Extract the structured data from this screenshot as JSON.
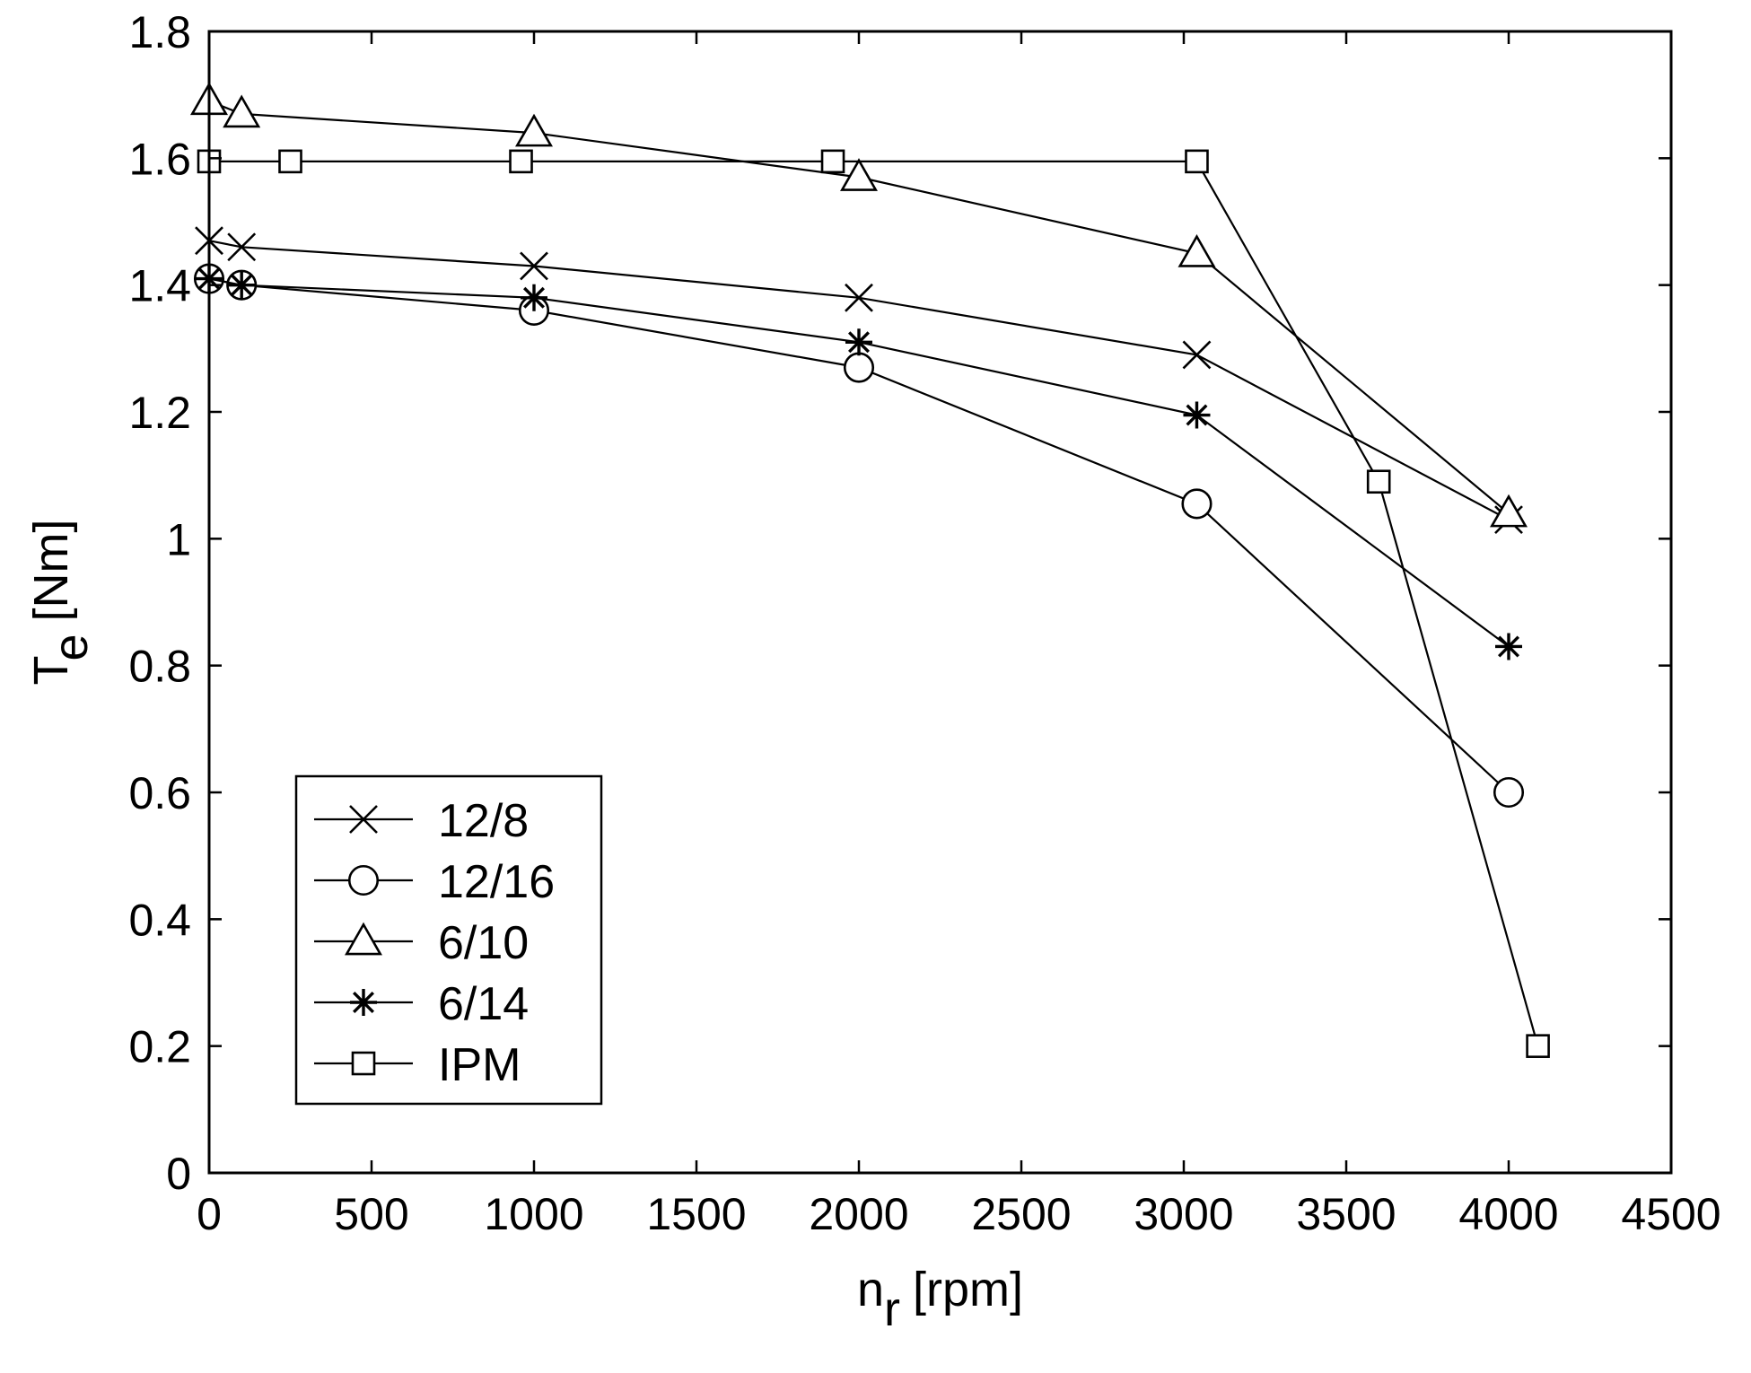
{
  "chart_data": {
    "type": "line",
    "xlabel": {
      "main": "n",
      "sub": "r",
      "unit": "[rpm]"
    },
    "ylabel": {
      "main": "T",
      "sub": "e",
      "unit": "[Nm]"
    },
    "xlim": [
      0,
      4500
    ],
    "ylim": [
      0,
      1.8
    ],
    "xticks": [
      0,
      500,
      1000,
      1500,
      2000,
      2500,
      3000,
      3500,
      4000,
      4500
    ],
    "yticks": [
      0,
      0.2,
      0.4,
      0.6,
      0.8,
      1,
      1.2,
      1.4,
      1.6,
      1.8
    ],
    "xtick_labels": [
      "0",
      "500",
      "1000",
      "1500",
      "2000",
      "2500",
      "3000",
      "3500",
      "4000",
      "4500"
    ],
    "ytick_labels": [
      "0",
      "0.2",
      "0.4",
      "0.6",
      "0.8",
      "1",
      "1.2",
      "1.4",
      "1.6",
      "1.8"
    ],
    "grid": false,
    "legend_position": "bottom-left",
    "line_color": "#000000",
    "series": [
      {
        "name": "12/8",
        "marker": "x",
        "x": [
          0,
          100,
          1000,
          2000,
          3040,
          4000
        ],
        "y": [
          1.47,
          1.46,
          1.43,
          1.38,
          1.29,
          1.03
        ]
      },
      {
        "name": "12/16",
        "marker": "circle",
        "x": [
          0,
          100,
          1000,
          2000,
          3040,
          4000
        ],
        "y": [
          1.41,
          1.4,
          1.36,
          1.27,
          1.055,
          0.6
        ]
      },
      {
        "name": "6/10",
        "marker": "triangle",
        "x": [
          0,
          100,
          1000,
          2000,
          3040,
          4000
        ],
        "y": [
          1.69,
          1.67,
          1.64,
          1.57,
          1.45,
          1.04
        ]
      },
      {
        "name": "6/14",
        "marker": "star",
        "x": [
          0,
          100,
          1000,
          2000,
          3040,
          4000
        ],
        "y": [
          1.41,
          1.4,
          1.38,
          1.31,
          1.195,
          0.83
        ]
      },
      {
        "name": "IPM",
        "marker": "square",
        "x": [
          0,
          250,
          960,
          1920,
          3040,
          3600,
          4090
        ],
        "y": [
          1.595,
          1.595,
          1.595,
          1.595,
          1.595,
          1.09,
          0.2
        ]
      }
    ]
  }
}
